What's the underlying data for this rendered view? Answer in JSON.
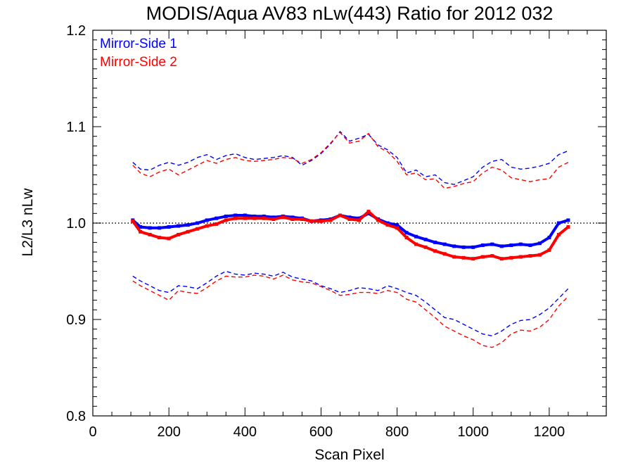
{
  "chart_data": {
    "type": "line",
    "title": "MODIS/Aqua AV83 nLw(443) Ratio for 2012 032",
    "xlabel": "Scan Pixel",
    "ylabel": "L2/L3 nLw",
    "xlim": [
      0,
      1350
    ],
    "ylim": [
      0.8,
      1.2
    ],
    "x_ticks": [
      0,
      200,
      400,
      600,
      800,
      1000,
      1200
    ],
    "x_tick_labels": [
      "0",
      "200",
      "400",
      "600",
      "800",
      "1000",
      "1200"
    ],
    "y_ticks": [
      0.8,
      0.9,
      1.0,
      1.1,
      1.2
    ],
    "y_tick_labels": [
      "0.8",
      "0.9",
      "1.0",
      "1.1",
      "1.2"
    ],
    "reference_line": 1.0,
    "legend_position": "top-left",
    "grid": false,
    "series": [
      {
        "name": "Mirror-Side 1",
        "color": "#0000ff",
        "mean": {
          "x": [
            105,
            125,
            150,
            175,
            200,
            225,
            250,
            275,
            300,
            325,
            350,
            375,
            400,
            425,
            450,
            475,
            500,
            525,
            550,
            575,
            600,
            625,
            650,
            675,
            700,
            725,
            750,
            775,
            800,
            825,
            850,
            875,
            900,
            925,
            950,
            975,
            1000,
            1025,
            1050,
            1075,
            1100,
            1125,
            1150,
            1175,
            1200,
            1225,
            1250
          ],
          "y": [
            1.003,
            0.996,
            0.995,
            0.995,
            0.996,
            0.997,
            0.998,
            1.0,
            1.003,
            1.005,
            1.007,
            1.008,
            1.008,
            1.007,
            1.007,
            1.006,
            1.007,
            1.006,
            1.005,
            1.002,
            1.003,
            1.004,
            1.008,
            1.006,
            1.005,
            1.01,
            1.004,
            1.0,
            0.998,
            0.99,
            0.986,
            0.983,
            0.98,
            0.978,
            0.976,
            0.975,
            0.975,
            0.977,
            0.978,
            0.976,
            0.977,
            0.978,
            0.977,
            0.979,
            0.985,
            1.0,
            1.003
          ]
        },
        "upper": {
          "x": [
            105,
            125,
            150,
            175,
            200,
            225,
            250,
            275,
            300,
            325,
            350,
            375,
            400,
            425,
            450,
            475,
            500,
            525,
            550,
            575,
            600,
            625,
            650,
            675,
            700,
            725,
            750,
            775,
            800,
            825,
            850,
            875,
            900,
            925,
            950,
            975,
            1000,
            1025,
            1050,
            1075,
            1100,
            1125,
            1150,
            1175,
            1200,
            1225,
            1250
          ],
          "y": [
            1.063,
            1.056,
            1.055,
            1.06,
            1.063,
            1.06,
            1.063,
            1.068,
            1.071,
            1.066,
            1.07,
            1.072,
            1.068,
            1.066,
            1.067,
            1.068,
            1.07,
            1.068,
            1.06,
            1.065,
            1.072,
            1.082,
            1.095,
            1.085,
            1.088,
            1.092,
            1.081,
            1.076,
            1.068,
            1.052,
            1.055,
            1.048,
            1.05,
            1.042,
            1.04,
            1.044,
            1.048,
            1.058,
            1.064,
            1.066,
            1.058,
            1.056,
            1.057,
            1.059,
            1.062,
            1.071,
            1.075
          ]
        },
        "lower": {
          "x": [
            105,
            125,
            150,
            175,
            200,
            225,
            250,
            275,
            300,
            325,
            350,
            375,
            400,
            425,
            450,
            475,
            500,
            525,
            550,
            575,
            600,
            625,
            650,
            675,
            700,
            725,
            750,
            775,
            800,
            825,
            850,
            875,
            900,
            925,
            950,
            975,
            1000,
            1025,
            1050,
            1075,
            1100,
            1125,
            1150,
            1175,
            1200,
            1225,
            1250
          ],
          "y": [
            0.945,
            0.94,
            0.935,
            0.93,
            0.928,
            0.935,
            0.934,
            0.932,
            0.938,
            0.945,
            0.95,
            0.947,
            0.946,
            0.948,
            0.947,
            0.945,
            0.949,
            0.944,
            0.942,
            0.94,
            0.935,
            0.932,
            0.928,
            0.93,
            0.933,
            0.932,
            0.93,
            0.935,
            0.932,
            0.928,
            0.925,
            0.918,
            0.91,
            0.902,
            0.9,
            0.895,
            0.89,
            0.885,
            0.883,
            0.888,
            0.895,
            0.899,
            0.9,
            0.905,
            0.912,
            0.922,
            0.932
          ]
        }
      },
      {
        "name": "Mirror-Side 2",
        "color": "#ff0000",
        "mean": {
          "x": [
            105,
            125,
            150,
            175,
            200,
            225,
            250,
            275,
            300,
            325,
            350,
            375,
            400,
            425,
            450,
            475,
            500,
            525,
            550,
            575,
            600,
            625,
            650,
            675,
            700,
            725,
            750,
            775,
            800,
            825,
            850,
            875,
            900,
            925,
            950,
            975,
            1000,
            1025,
            1050,
            1075,
            1100,
            1125,
            1150,
            1175,
            1200,
            1225,
            1250
          ],
          "y": [
            1.002,
            0.991,
            0.988,
            0.985,
            0.984,
            0.988,
            0.991,
            0.994,
            0.997,
            0.999,
            1.003,
            1.005,
            1.005,
            1.005,
            1.005,
            1.004,
            1.006,
            1.004,
            1.004,
            1.002,
            1.002,
            1.003,
            1.008,
            1.004,
            1.003,
            1.012,
            1.003,
            0.998,
            0.995,
            0.985,
            0.978,
            0.975,
            0.971,
            0.968,
            0.965,
            0.964,
            0.963,
            0.965,
            0.966,
            0.963,
            0.964,
            0.965,
            0.966,
            0.967,
            0.972,
            0.988,
            0.996
          ]
        },
        "upper": {
          "x": [
            105,
            125,
            150,
            175,
            200,
            225,
            250,
            275,
            300,
            325,
            350,
            375,
            400,
            425,
            450,
            475,
            500,
            525,
            550,
            575,
            600,
            625,
            650,
            675,
            700,
            725,
            750,
            775,
            800,
            825,
            850,
            875,
            900,
            925,
            950,
            975,
            1000,
            1025,
            1050,
            1075,
            1100,
            1125,
            1150,
            1175,
            1200,
            1225,
            1250
          ],
          "y": [
            1.06,
            1.052,
            1.048,
            1.053,
            1.056,
            1.05,
            1.055,
            1.06,
            1.065,
            1.062,
            1.066,
            1.068,
            1.065,
            1.064,
            1.065,
            1.066,
            1.068,
            1.067,
            1.062,
            1.066,
            1.073,
            1.083,
            1.094,
            1.083,
            1.085,
            1.093,
            1.079,
            1.074,
            1.064,
            1.05,
            1.052,
            1.045,
            1.046,
            1.036,
            1.038,
            1.041,
            1.043,
            1.052,
            1.058,
            1.055,
            1.047,
            1.045,
            1.043,
            1.045,
            1.046,
            1.058,
            1.063
          ]
        },
        "lower": {
          "x": [
            105,
            125,
            150,
            175,
            200,
            225,
            250,
            275,
            300,
            325,
            350,
            375,
            400,
            425,
            450,
            475,
            500,
            525,
            550,
            575,
            600,
            625,
            650,
            675,
            700,
            725,
            750,
            775,
            800,
            825,
            850,
            875,
            900,
            925,
            950,
            975,
            1000,
            1025,
            1050,
            1075,
            1100,
            1125,
            1150,
            1175,
            1200,
            1225,
            1250
          ],
          "y": [
            0.94,
            0.935,
            0.93,
            0.925,
            0.92,
            0.93,
            0.928,
            0.927,
            0.933,
            0.94,
            0.945,
            0.944,
            0.944,
            0.946,
            0.945,
            0.942,
            0.946,
            0.941,
            0.939,
            0.938,
            0.934,
            0.93,
            0.925,
            0.926,
            0.928,
            0.928,
            0.927,
            0.93,
            0.928,
            0.921,
            0.918,
            0.91,
            0.902,
            0.893,
            0.888,
            0.883,
            0.879,
            0.873,
            0.871,
            0.876,
            0.885,
            0.889,
            0.888,
            0.892,
            0.9,
            0.914,
            0.924
          ]
        }
      }
    ]
  }
}
